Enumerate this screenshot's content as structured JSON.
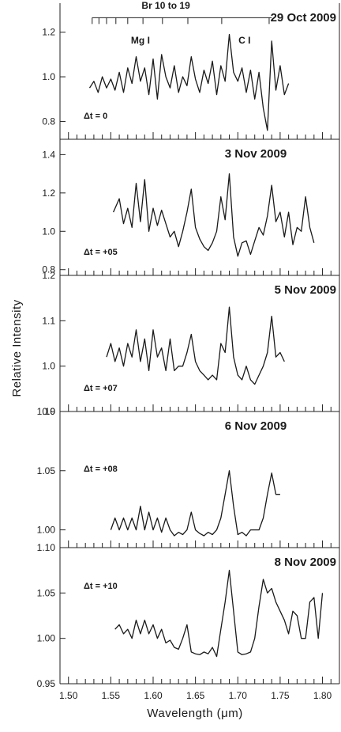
{
  "chart_data": {
    "type": "line",
    "ylabel": "Relative Intensity",
    "xlabel": "Wavelength (μm)",
    "xlim": [
      1.49,
      1.82
    ],
    "x_ticks": [
      "1.50",
      "1.55",
      "1.60",
      "1.65",
      "1.70",
      "1.75",
      "1.80"
    ],
    "panels": [
      {
        "title": "29 Oct 2009",
        "annotation": "Δt = 0",
        "ylim": [
          0.72,
          1.33
        ],
        "y_ticks": [
          {
            "value": 0.8,
            "label": "0.8"
          },
          {
            "value": 1.0,
            "label": "1.0"
          },
          {
            "value": 1.2,
            "label": "1.2"
          }
        ],
        "labels": [
          {
            "text": "Br 10 to 19",
            "x": 1.615,
            "y": 1.305
          },
          {
            "text": "Mg I",
            "x": 1.585,
            "y": 1.15
          },
          {
            "text": "C I",
            "x": 1.708,
            "y": 1.15
          }
        ],
        "bracket": {
          "x0": 1.528,
          "x1": 1.74,
          "y": 1.265,
          "ticks": [
            1.528,
            1.536,
            1.545,
            1.556,
            1.57,
            1.588,
            1.611,
            1.641,
            1.681,
            1.737
          ]
        },
        "x": [
          1.525,
          1.53,
          1.535,
          1.54,
          1.545,
          1.55,
          1.555,
          1.56,
          1.565,
          1.57,
          1.575,
          1.58,
          1.585,
          1.59,
          1.595,
          1.6,
          1.605,
          1.61,
          1.615,
          1.62,
          1.625,
          1.63,
          1.635,
          1.64,
          1.645,
          1.65,
          1.655,
          1.66,
          1.665,
          1.67,
          1.675,
          1.68,
          1.685,
          1.69,
          1.695,
          1.7,
          1.705,
          1.71,
          1.715,
          1.72,
          1.725,
          1.73,
          1.735,
          1.74,
          1.745,
          1.75,
          1.755,
          1.76
        ],
        "values": [
          0.95,
          0.98,
          0.93,
          1.0,
          0.95,
          0.99,
          0.94,
          1.02,
          0.93,
          1.04,
          0.97,
          1.09,
          0.98,
          1.04,
          0.92,
          1.08,
          0.9,
          1.1,
          1.0,
          0.95,
          1.05,
          0.93,
          1.0,
          0.96,
          1.09,
          0.99,
          0.93,
          1.03,
          0.97,
          1.07,
          0.92,
          1.05,
          0.98,
          1.19,
          1.02,
          0.98,
          1.04,
          0.93,
          1.03,
          0.9,
          1.02,
          0.86,
          0.76,
          1.16,
          0.94,
          1.05,
          0.92,
          0.97
        ]
      },
      {
        "title": "3 Nov 2009",
        "annotation": "Δt = +05",
        "ylim": [
          0.77,
          1.48
        ],
        "y_ticks": [
          {
            "value": 0.8,
            "label": "0.8"
          },
          {
            "value": 1.0,
            "label": "1.0"
          },
          {
            "value": 1.2,
            "label": "1.2"
          },
          {
            "value": 1.4,
            "label": "1.4"
          }
        ],
        "x": [
          1.553,
          1.56,
          1.565,
          1.57,
          1.575,
          1.58,
          1.585,
          1.59,
          1.595,
          1.6,
          1.605,
          1.61,
          1.615,
          1.62,
          1.625,
          1.63,
          1.635,
          1.64,
          1.645,
          1.65,
          1.655,
          1.66,
          1.665,
          1.67,
          1.675,
          1.68,
          1.685,
          1.69,
          1.695,
          1.7,
          1.705,
          1.71,
          1.715,
          1.72,
          1.725,
          1.73,
          1.735,
          1.74,
          1.745,
          1.75,
          1.755,
          1.76,
          1.765,
          1.77,
          1.775,
          1.78,
          1.785,
          1.79
        ],
        "values": [
          1.1,
          1.17,
          1.04,
          1.12,
          1.02,
          1.25,
          1.05,
          1.27,
          1.0,
          1.12,
          1.03,
          1.11,
          1.04,
          0.97,
          1.0,
          0.92,
          1.0,
          1.1,
          1.22,
          1.02,
          0.96,
          0.92,
          0.9,
          0.94,
          1.0,
          1.18,
          1.06,
          1.3,
          0.97,
          0.87,
          0.94,
          0.95,
          0.88,
          0.95,
          1.02,
          0.98,
          1.08,
          1.24,
          1.05,
          1.1,
          0.97,
          1.1,
          0.93,
          1.02,
          1.0,
          1.18,
          1.02,
          0.94
        ]
      },
      {
        "title": "5 Nov 2009",
        "annotation": "Δt = +07",
        "ylim": [
          0.9,
          1.2
        ],
        "y_ticks": [
          {
            "value": 0.9,
            "label": "0.9"
          },
          {
            "value": 1.0,
            "label": "1.0"
          },
          {
            "value": 1.1,
            "label": "1.1"
          },
          {
            "value": 1.2,
            "label": "1.2"
          }
        ],
        "x": [
          1.545,
          1.55,
          1.555,
          1.56,
          1.565,
          1.57,
          1.575,
          1.58,
          1.585,
          1.59,
          1.595,
          1.6,
          1.605,
          1.61,
          1.615,
          1.62,
          1.625,
          1.63,
          1.635,
          1.64,
          1.645,
          1.65,
          1.655,
          1.66,
          1.665,
          1.67,
          1.675,
          1.68,
          1.685,
          1.69,
          1.695,
          1.7,
          1.705,
          1.71,
          1.715,
          1.72,
          1.725,
          1.73,
          1.735,
          1.74,
          1.745,
          1.75,
          1.755
        ],
        "values": [
          1.02,
          1.05,
          1.01,
          1.04,
          1.0,
          1.05,
          1.02,
          1.08,
          1.01,
          1.06,
          0.99,
          1.08,
          1.02,
          1.04,
          0.99,
          1.06,
          0.99,
          1.0,
          1.0,
          1.03,
          1.07,
          1.01,
          0.99,
          0.98,
          0.97,
          0.98,
          0.97,
          1.05,
          1.03,
          1.13,
          1.02,
          0.98,
          0.97,
          1.0,
          0.97,
          0.96,
          0.98,
          1.0,
          1.03,
          1.11,
          1.02,
          1.03,
          1.01
        ]
      },
      {
        "title": "6 Nov 2009",
        "annotation": "Δt = +08",
        "ylim": [
          0.985,
          1.1
        ],
        "y_ticks": [
          {
            "value": 1.0,
            "label": "1.00"
          },
          {
            "value": 1.05,
            "label": "1.05"
          },
          {
            "value": 1.1,
            "label": "1.10"
          }
        ],
        "x": [
          1.55,
          1.555,
          1.56,
          1.565,
          1.57,
          1.575,
          1.58,
          1.585,
          1.59,
          1.595,
          1.6,
          1.605,
          1.61,
          1.615,
          1.62,
          1.625,
          1.63,
          1.635,
          1.64,
          1.645,
          1.65,
          1.655,
          1.66,
          1.665,
          1.67,
          1.675,
          1.68,
          1.685,
          1.69,
          1.695,
          1.7,
          1.705,
          1.71,
          1.715,
          1.72,
          1.725,
          1.73,
          1.735,
          1.74,
          1.745,
          1.75
        ],
        "values": [
          1.0,
          1.01,
          1.0,
          1.01,
          1.0,
          1.01,
          1.0,
          1.02,
          1.0,
          1.015,
          1.0,
          1.01,
          0.998,
          1.01,
          1.0,
          0.995,
          0.998,
          0.996,
          1.0,
          1.015,
          1.0,
          0.997,
          0.995,
          0.998,
          0.996,
          1.0,
          1.01,
          1.03,
          1.05,
          1.02,
          0.996,
          0.998,
          0.995,
          1.0,
          1.0,
          1.0,
          1.01,
          1.03,
          1.048,
          1.03,
          1.03
        ]
      },
      {
        "title": "8 Nov 2009",
        "annotation": "Δt = +10",
        "ylim": [
          0.95,
          1.1
        ],
        "y_ticks": [
          {
            "value": 0.95,
            "label": "0.95"
          },
          {
            "value": 1.0,
            "label": "1.00"
          },
          {
            "value": 1.05,
            "label": "1.05"
          },
          {
            "value": 1.1,
            "label": "1.10"
          }
        ],
        "x": [
          1.555,
          1.56,
          1.565,
          1.57,
          1.575,
          1.58,
          1.585,
          1.59,
          1.595,
          1.6,
          1.605,
          1.61,
          1.615,
          1.62,
          1.625,
          1.63,
          1.635,
          1.64,
          1.645,
          1.65,
          1.655,
          1.66,
          1.665,
          1.67,
          1.675,
          1.68,
          1.685,
          1.69,
          1.695,
          1.7,
          1.705,
          1.71,
          1.715,
          1.72,
          1.725,
          1.73,
          1.735,
          1.74,
          1.745,
          1.75,
          1.755,
          1.76,
          1.765,
          1.77,
          1.775,
          1.78,
          1.785,
          1.79,
          1.795,
          1.8
        ],
        "values": [
          1.01,
          1.015,
          1.005,
          1.01,
          1.0,
          1.02,
          1.005,
          1.02,
          1.005,
          1.015,
          1.0,
          1.01,
          0.995,
          0.998,
          0.99,
          0.988,
          1.0,
          1.015,
          0.985,
          0.983,
          0.982,
          0.985,
          0.983,
          0.99,
          0.98,
          1.01,
          1.04,
          1.075,
          1.03,
          0.985,
          0.982,
          0.983,
          0.985,
          1.0,
          1.035,
          1.065,
          1.05,
          1.055,
          1.04,
          1.03,
          1.02,
          1.005,
          1.03,
          1.025,
          1.0,
          1.0,
          1.04,
          1.045,
          1.0,
          1.05
        ]
      }
    ]
  }
}
